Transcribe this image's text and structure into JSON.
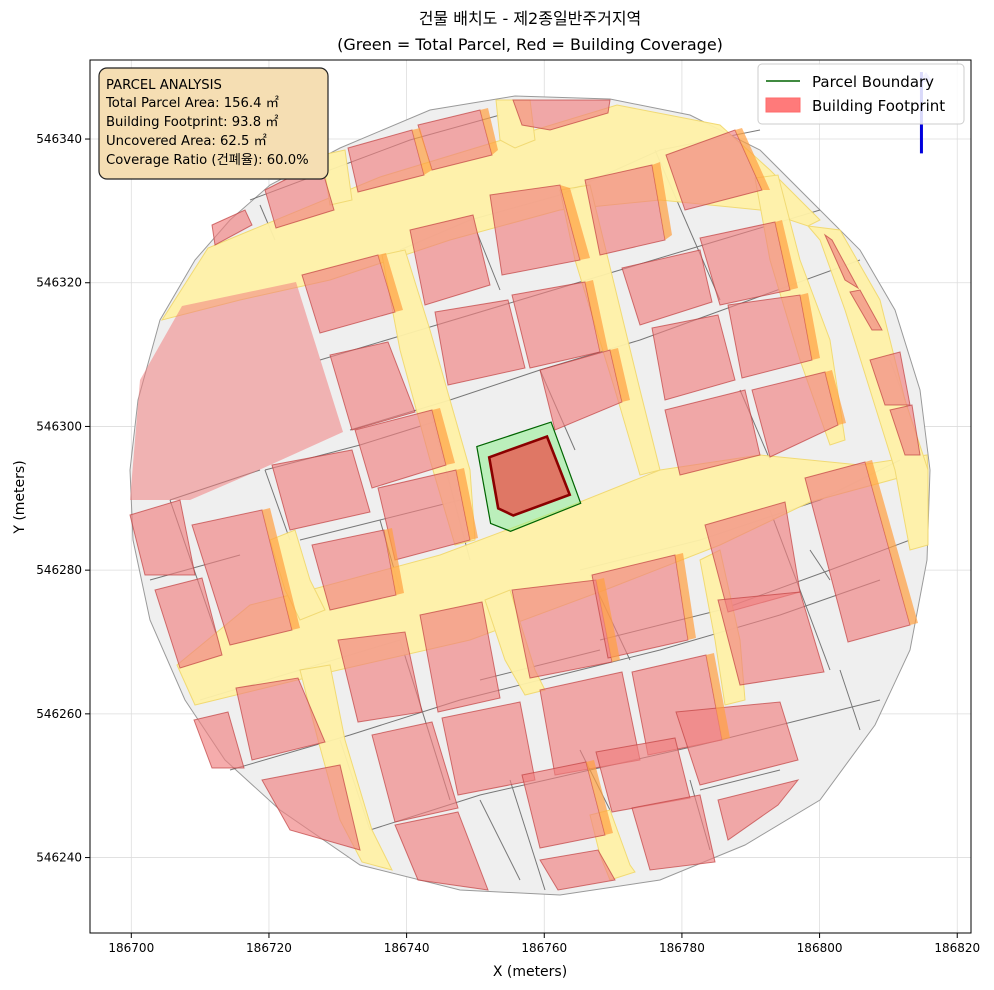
{
  "title": {
    "line1": "건물 배치도 - 제2종일반주거지역",
    "line2": "(Green = Total Parcel, Red = Building Coverage)"
  },
  "axes": {
    "xlabel": "X (meters)",
    "ylabel": "Y (meters)",
    "xlim": [
      186694,
      186822
    ],
    "ylim": [
      546229.5,
      546351
    ],
    "xticks": [
      186700,
      186720,
      186740,
      186760,
      186780,
      186800,
      186820
    ],
    "yticks": [
      546240,
      546260,
      546280,
      546300,
      546320,
      546340
    ],
    "grid": true
  },
  "info_box": {
    "heading": "PARCEL ANALYSIS",
    "lines": [
      "Total Parcel Area: 156.4 ㎡",
      "Building Footprint: 93.8 ㎡",
      "Uncovered Area: 62.5 ㎡",
      "Coverage Ratio (건폐율): 60.0%"
    ]
  },
  "legend": {
    "parcel_label": "Parcel Boundary",
    "building_label": "Building Footprint",
    "placement": "top-right"
  },
  "colors": {
    "parcel_edge": "#006400",
    "parcel_fill": "#90ee90",
    "building_edge": "#8b0000",
    "building_fill": "#ff6b6b",
    "road": "#fff2a8",
    "block": "#eeeeee",
    "neighbor_building": "#f08080",
    "info_bg": "#f5deb3",
    "north_arrow": "#0000dd"
  },
  "chart_data": {
    "type": "map",
    "crs_units": "meters",
    "subject_parcel": {
      "area_m2": 156.4,
      "polygon": [
        [
          186750.2,
          546297.2
        ],
        [
          186761.0,
          546300.6
        ],
        [
          186765.3,
          546289.3
        ],
        [
          186755.1,
          546285.4
        ],
        [
          186752.2,
          546286.5
        ]
      ]
    },
    "subject_building": {
      "area_m2": 93.8,
      "polygon": [
        [
          186752.0,
          546295.7
        ],
        [
          186760.4,
          546298.6
        ],
        [
          186763.7,
          546290.5
        ],
        [
          186755.5,
          546287.6
        ],
        [
          186753.3,
          546288.6
        ]
      ]
    },
    "coverage_ratio_percent": 60.0,
    "uncovered_area_m2": 62.5,
    "roads": [
      [
        [
          186704.5,
          546319
        ],
        [
          186711,
          546328.8
        ],
        [
          186770,
          546347.4
        ],
        [
          186794.7,
          546342.4
        ],
        [
          186802.8,
          546334.6
        ],
        [
          186790.5,
          546331
        ],
        [
          186708.1,
          546317
        ]
      ],
      [
        [
          186709.4,
          546267.4
        ],
        [
          186713.8,
          546261.9
        ],
        [
          186818.7,
          546298.6
        ],
        [
          186816.7,
          546298.9
        ],
        [
          186815.5,
          546290.8
        ],
        [
          186815.7,
          546300
        ]
      ],
      [
        [
          186712,
          546334
        ],
        [
          186717.7,
          546334.8
        ],
        [
          186728.4,
          546334.6
        ],
        [
          186732,
          546345.3
        ],
        [
          186725.8,
          546328.9
        ]
      ],
      [
        [
          186741.5,
          546325.5
        ],
        [
          186745.8,
          546325.9
        ],
        [
          186760.4,
          546273.7
        ],
        [
          186752.7,
          546274.6
        ]
      ],
      [
        [
          186768.5,
          546332.3
        ],
        [
          186773.1,
          546327.3
        ],
        [
          186782.9,
          546271.4
        ],
        [
          186785.9,
          546266.2
        ],
        [
          186781.8,
          546256.7
        ]
      ],
      [
        [
          186794.8,
          546344.6
        ],
        [
          186801.9,
          546337.0
        ],
        [
          186818.7,
          546282.6
        ],
        [
          186819.3,
          546299.3
        ],
        [
          186807.5,
          546333.7
        ]
      ],
      [
        [
          186727.5,
          546268.3
        ],
        [
          186735.3,
          546266.9
        ],
        [
          186740.1,
          546246
        ],
        [
          186733.9,
          546236.3
        ]
      ],
      [
        [
          186728,
          546283.2
        ],
        [
          186722.4,
          546281
        ],
        [
          186730.5,
          546270.9
        ],
        [
          186730.4,
          546262
        ]
      ],
      [
        [
          186757.7,
          546268.7
        ],
        [
          186762.7,
          546267.5
        ],
        [
          186774.7,
          546238.2
        ],
        [
          186770.1,
          546242.9
        ]
      ],
      [
        [
          186743.8,
          546350.1
        ],
        [
          186749.0,
          546350.1
        ],
        [
          186745.8,
          546333.3
        ],
        [
          186751.3,
          546342.6
        ]
      ]
    ],
    "north_arrow": {
      "x": 186814.8,
      "y_from": 546338,
      "y_to": 546351
    }
  }
}
